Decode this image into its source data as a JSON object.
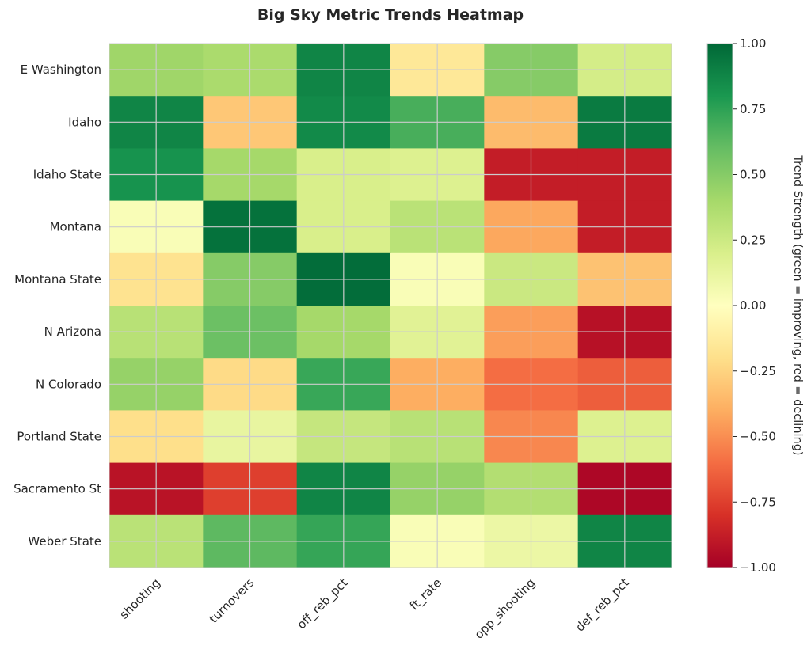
{
  "chart_data": {
    "type": "heatmap",
    "title": "Big Sky Metric Trends Heatmap",
    "x_categories": [
      "shooting",
      "turnovers",
      "off_reb_pct",
      "ft_rate",
      "opp_shooting",
      "def_reb_pct"
    ],
    "y_categories": [
      "E Washington",
      "Idaho",
      "Idaho State",
      "Montana",
      "Montana State",
      "N Arizona",
      "N Colorado",
      "Portland State",
      "Sacramento St",
      "Weber State"
    ],
    "values": [
      [
        0.42,
        0.38,
        0.88,
        -0.15,
        0.5,
        0.22
      ],
      [
        0.88,
        -0.3,
        0.86,
        0.68,
        -0.35,
        0.92
      ],
      [
        0.82,
        0.4,
        0.2,
        0.18,
        -0.88,
        -0.88
      ],
      [
        0.03,
        0.96,
        0.2,
        0.32,
        -0.42,
        -0.88
      ],
      [
        -0.18,
        0.5,
        0.98,
        0.03,
        0.26,
        -0.32
      ],
      [
        0.33,
        0.58,
        0.4,
        0.16,
        -0.45,
        -0.93
      ],
      [
        0.45,
        -0.22,
        0.72,
        -0.4,
        -0.6,
        -0.65
      ],
      [
        -0.2,
        0.12,
        0.28,
        0.33,
        -0.52,
        0.18
      ],
      [
        -0.92,
        -0.75,
        0.88,
        0.45,
        0.35,
        -0.97
      ],
      [
        0.32,
        0.62,
        0.73,
        0.03,
        0.1,
        0.88
      ]
    ],
    "vmin": -1,
    "vmax": 1,
    "colormap": "RdYlGn",
    "colorbar": {
      "label": "Trend Strength (green = improving, red = declining)",
      "ticks": [
        "1.00",
        "0.75",
        "0.50",
        "0.25",
        "0.00",
        "−0.25",
        "−0.50",
        "−0.75",
        "−1.00"
      ],
      "tick_values": [
        1,
        0.75,
        0.5,
        0.25,
        0,
        -0.25,
        -0.5,
        -0.75,
        -1
      ]
    },
    "grid": true
  },
  "colors": {
    "gridline": "#cccccc",
    "text": "#262626"
  }
}
